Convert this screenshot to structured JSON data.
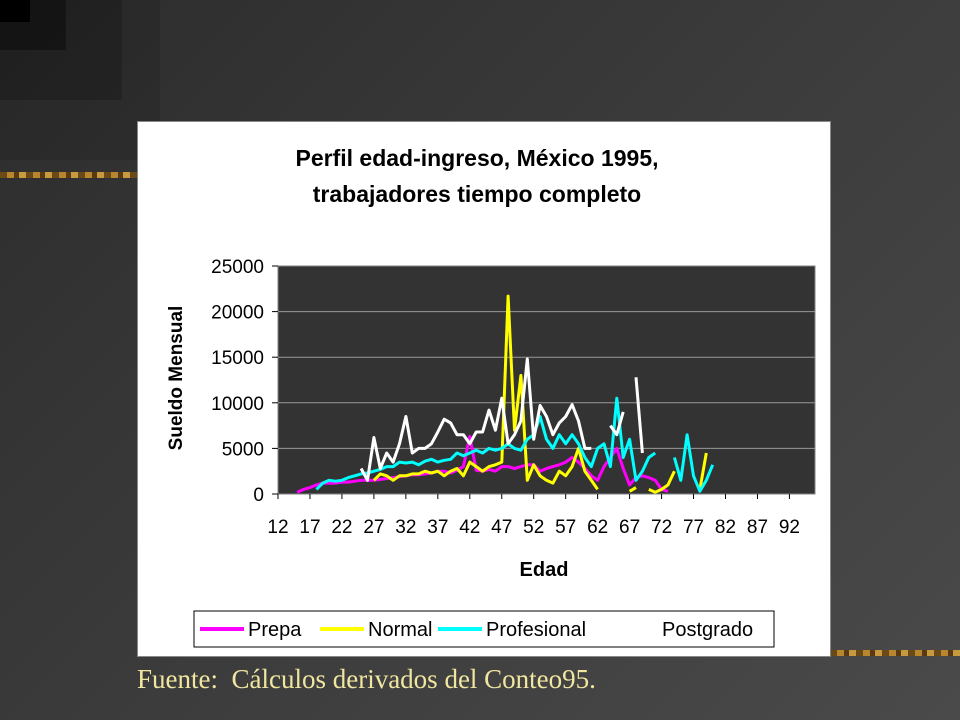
{
  "source_note": "Fuente:  Cálculos derivados del Conteo95.",
  "chart_data": {
    "type": "line",
    "title_line1": "Perfil edad-ingreso, México 1995,",
    "title_line2": "trabajadores tiempo completo",
    "xlabel": "Edad",
    "ylabel": "Sueldo Mensual",
    "xlim": [
      12,
      96
    ],
    "ylim": [
      0,
      25000
    ],
    "y_ticks": [
      0,
      5000,
      10000,
      15000,
      20000,
      25000
    ],
    "x_ticks": [
      12,
      17,
      22,
      27,
      32,
      37,
      42,
      47,
      52,
      57,
      62,
      67,
      72,
      77,
      82,
      87,
      92
    ],
    "grid": "horizontal",
    "plot_background": "#333333",
    "legend_position": "bottom",
    "series": [
      {
        "name": "Prepa",
        "color": "#ff00ff",
        "x": [
          15,
          16,
          17,
          18,
          19,
          20,
          21,
          22,
          23,
          24,
          25,
          26,
          27,
          28,
          29,
          30,
          31,
          32,
          33,
          34,
          35,
          36,
          37,
          38,
          39,
          40,
          41,
          42,
          43,
          44,
          45,
          46,
          47,
          48,
          49,
          50,
          51,
          52,
          53,
          54,
          55,
          56,
          57,
          58,
          59,
          60,
          61,
          62,
          63,
          64,
          65,
          66,
          67,
          68,
          69,
          70,
          71,
          72,
          73,
          74,
          75,
          76,
          77
        ],
        "y": [
          200,
          500,
          700,
          1000,
          1200,
          1200,
          1200,
          1300,
          1300,
          1400,
          1500,
          1500,
          1500,
          1600,
          1700,
          1800,
          1900,
          2000,
          2100,
          2100,
          2200,
          2300,
          2500,
          2500,
          2300,
          2600,
          3000,
          6300,
          2600,
          2500,
          2700,
          2500,
          3000,
          3000,
          2800,
          3000,
          3200,
          3200,
          2500,
          2800,
          3000,
          3200,
          3500,
          4000,
          3500,
          2800,
          2000,
          1500,
          3000,
          4000,
          5000,
          2800,
          1000,
          1800,
          2000,
          1800,
          1500,
          500,
          300,
          null,
          null,
          2000,
          null
        ]
      },
      {
        "name": "Normal",
        "color": "#ffff00",
        "x": [
          27,
          28,
          29,
          30,
          31,
          32,
          33,
          34,
          35,
          36,
          37,
          38,
          39,
          40,
          41,
          42,
          43,
          44,
          45,
          46,
          47,
          48,
          49,
          50,
          51,
          52,
          53,
          54,
          55,
          56,
          57,
          58,
          59,
          60,
          61,
          62,
          null,
          67,
          68,
          null,
          70,
          71,
          72,
          73,
          74,
          null,
          78,
          79
        ],
        "y": [
          1500,
          2200,
          2000,
          1500,
          2000,
          2000,
          2200,
          2200,
          2500,
          2300,
          2500,
          2000,
          2500,
          2800,
          2000,
          3500,
          3000,
          2500,
          3000,
          3200,
          3500,
          21700,
          7000,
          13000,
          1500,
          3200,
          2000,
          1500,
          1200,
          2500,
          2000,
          3000,
          5000,
          2500,
          1500,
          500,
          null,
          300,
          700,
          null,
          500,
          200,
          500,
          1000,
          2500,
          null,
          500,
          4500
        ]
      },
      {
        "name": "Profesional",
        "color": "#00ffff",
        "x": [
          18,
          19,
          20,
          21,
          22,
          23,
          24,
          25,
          26,
          27,
          28,
          29,
          30,
          31,
          32,
          33,
          34,
          35,
          36,
          37,
          38,
          39,
          40,
          41,
          42,
          43,
          44,
          45,
          46,
          47,
          48,
          49,
          50,
          51,
          52,
          53,
          54,
          55,
          56,
          57,
          58,
          59,
          60,
          61,
          62,
          63,
          64,
          65,
          66,
          67,
          68,
          69,
          70,
          71,
          null,
          74,
          75,
          76,
          77,
          78,
          79,
          80
        ],
        "y": [
          500,
          1200,
          1500,
          1400,
          1500,
          1800,
          2000,
          2200,
          2300,
          2500,
          2700,
          3000,
          3000,
          3500,
          3400,
          3500,
          3200,
          3600,
          3800,
          3500,
          3700,
          3800,
          4500,
          4200,
          4500,
          4800,
          4500,
          5000,
          4800,
          5000,
          5500,
          5000,
          4800,
          6000,
          6500,
          8500,
          6000,
          5000,
          6500,
          5500,
          6500,
          5500,
          4000,
          3000,
          5000,
          5500,
          3000,
          10500,
          4000,
          6000,
          1500,
          2500,
          4000,
          4500,
          null,
          4000,
          1500,
          6500,
          2000,
          300,
          1500,
          3200
        ]
      },
      {
        "name": "Postgrado",
        "color": "#ffffff",
        "x": [
          25,
          26,
          27,
          28,
          29,
          30,
          31,
          32,
          33,
          34,
          35,
          36,
          37,
          38,
          39,
          40,
          41,
          42,
          43,
          44,
          45,
          46,
          47,
          48,
          49,
          50,
          51,
          52,
          53,
          54,
          55,
          56,
          57,
          58,
          59,
          60,
          61,
          null,
          64,
          65,
          66,
          67,
          68,
          69
        ],
        "y": [
          2800,
          1500,
          6200,
          2800,
          4500,
          3500,
          5500,
          8500,
          4500,
          5000,
          5000,
          5500,
          6800,
          8200,
          7800,
          6500,
          6500,
          5500,
          6800,
          6800,
          9200,
          7000,
          10500,
          5500,
          6500,
          8000,
          14800,
          6000,
          9700,
          8500,
          6500,
          7800,
          8500,
          9800,
          8000,
          5000,
          5000,
          null,
          7500,
          6500,
          9000,
          null,
          12800,
          4500
        ]
      }
    ]
  }
}
